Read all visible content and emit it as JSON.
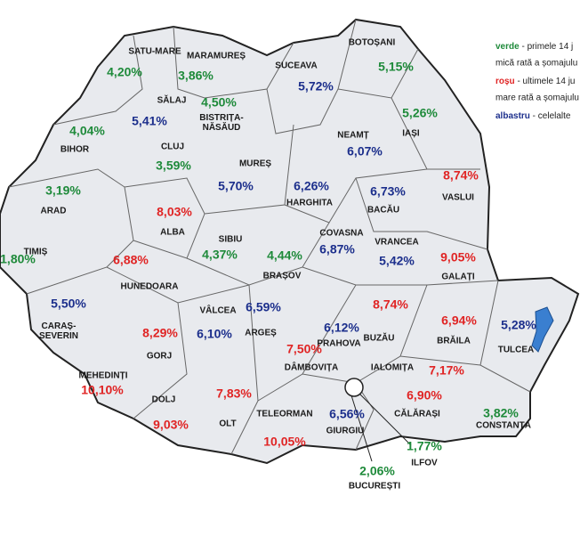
{
  "map": {
    "counties": [
      {
        "name": "SATU-MARE",
        "rate": "4,20%",
        "color": "#1e8a3a"
      },
      {
        "name": "MARAMUREȘ",
        "rate": "3,86%",
        "color": "#1e8a3a"
      },
      {
        "name": "BOTOȘANI",
        "rate": "5,15%",
        "color": "#1e8a3a"
      },
      {
        "name": "SUCEAVA",
        "rate": "5,72%",
        "color": "#1c2f8c"
      },
      {
        "name": "SĂLAJ",
        "rate": "5,41%",
        "color": "#1c2f8c"
      },
      {
        "name": [
          "BISTRIȚA-",
          "NĂSĂUD"
        ],
        "rate": "4,50%",
        "color": "#1e8a3a"
      },
      {
        "name": "IAȘI",
        "rate": "5,26%",
        "color": "#1e8a3a"
      },
      {
        "name": "NEAMȚ",
        "rate": "6,07%",
        "color": "#1c2f8c"
      },
      {
        "name": "BIHOR",
        "rate": "4,04%",
        "color": "#1e8a3a"
      },
      {
        "name": "CLUJ",
        "rate": "3,59%",
        "color": "#1e8a3a"
      },
      {
        "name": "MUREȘ",
        "rate": "5,70%",
        "color": "#1c2f8c"
      },
      {
        "name": "HARGHITA",
        "rate": "6,26%",
        "color": "#1c2f8c"
      },
      {
        "name": "BACĂU",
        "rate": "6,73%",
        "color": "#1c2f8c"
      },
      {
        "name": "VASLUI",
        "rate": "8,74%",
        "color": "#e02424"
      },
      {
        "name": "ARAD",
        "rate": "3,19%",
        "color": "#1e8a3a"
      },
      {
        "name": "ALBA",
        "rate": "8,03%",
        "color": "#e02424"
      },
      {
        "name": "SIBIU",
        "rate": "4,37%",
        "color": "#1e8a3a"
      },
      {
        "name": "COVASNA",
        "rate": "6,87%",
        "color": "#1c2f8c"
      },
      {
        "name": "VRANCEA",
        "rate": "5,42%",
        "color": "#1c2f8c"
      },
      {
        "name": "GALAȚI",
        "rate": "9,05%",
        "color": "#e02424"
      },
      {
        "name": "TIMIȘ",
        "rate": "1,80%",
        "color": "#1e8a3a"
      },
      {
        "name": "HUNEDOARA",
        "rate": "6,88%",
        "color": "#e02424"
      },
      {
        "name": "BRAȘOV",
        "rate": "4,44%",
        "color": "#1e8a3a"
      },
      {
        "name": [
          "CARAȘ-",
          "SEVERIN"
        ],
        "rate": "5,50%",
        "color": "#1c2f8c"
      },
      {
        "name": "VÂLCEA",
        "rate": "6,10%",
        "color": "#1c2f8c"
      },
      {
        "name": "ARGEȘ",
        "rate": "6,59%",
        "color": "#1c2f8c"
      },
      {
        "name": "PRAHOVA",
        "rate": "6,12%",
        "color": "#1c2f8c"
      },
      {
        "name": "BUZĂU",
        "rate": "8,74%",
        "color": "#e02424"
      },
      {
        "name": "BRĂILA",
        "rate": "6,94%",
        "color": "#e02424"
      },
      {
        "name": "TULCEA",
        "rate": "5,28%",
        "color": "#1c2f8c"
      },
      {
        "name": "GORJ",
        "rate": "8,29%",
        "color": "#e02424"
      },
      {
        "name": "DÂMBOVIȚA",
        "rate": "7,50%",
        "color": "#e02424"
      },
      {
        "name": "IALOMIȚA",
        "rate": "7,17%",
        "color": "#e02424"
      },
      {
        "name": "MEHEDINȚI",
        "rate": "10,10%",
        "color": "#e02424"
      },
      {
        "name": "DOLJ",
        "rate": "9,03%",
        "color": "#e02424"
      },
      {
        "name": "OLT",
        "rate": "7,83%",
        "color": "#e02424"
      },
      {
        "name": "TELEORMAN",
        "rate": "10,05%",
        "color": "#e02424"
      },
      {
        "name": "GIURGIU",
        "rate": "6,56%",
        "color": "#1c2f8c"
      },
      {
        "name": "CĂLĂRAȘI",
        "rate": "6,90%",
        "color": "#e02424"
      },
      {
        "name": "CONSTANȚA",
        "rate": "3,82%",
        "color": "#1e8a3a"
      },
      {
        "name": "ILFOV",
        "rate": "1,77%",
        "color": "#1e8a3a"
      },
      {
        "name": "BUCUREȘTI",
        "rate": "2,06%",
        "color": "#1e8a3a"
      }
    ],
    "legend": [
      {
        "key": "verde",
        "color": "#1e8a3a",
        "text": " - primele 14 j",
        "line2": "mică rată a șomajulu"
      },
      {
        "key": "roșu",
        "color": "#e02424",
        "text": " - ultimele 14 ju",
        "line2": "mare rată a șomajulu"
      },
      {
        "key": "albastru",
        "color": "#1c2f8c",
        "text": " - celelalte"
      }
    ]
  }
}
